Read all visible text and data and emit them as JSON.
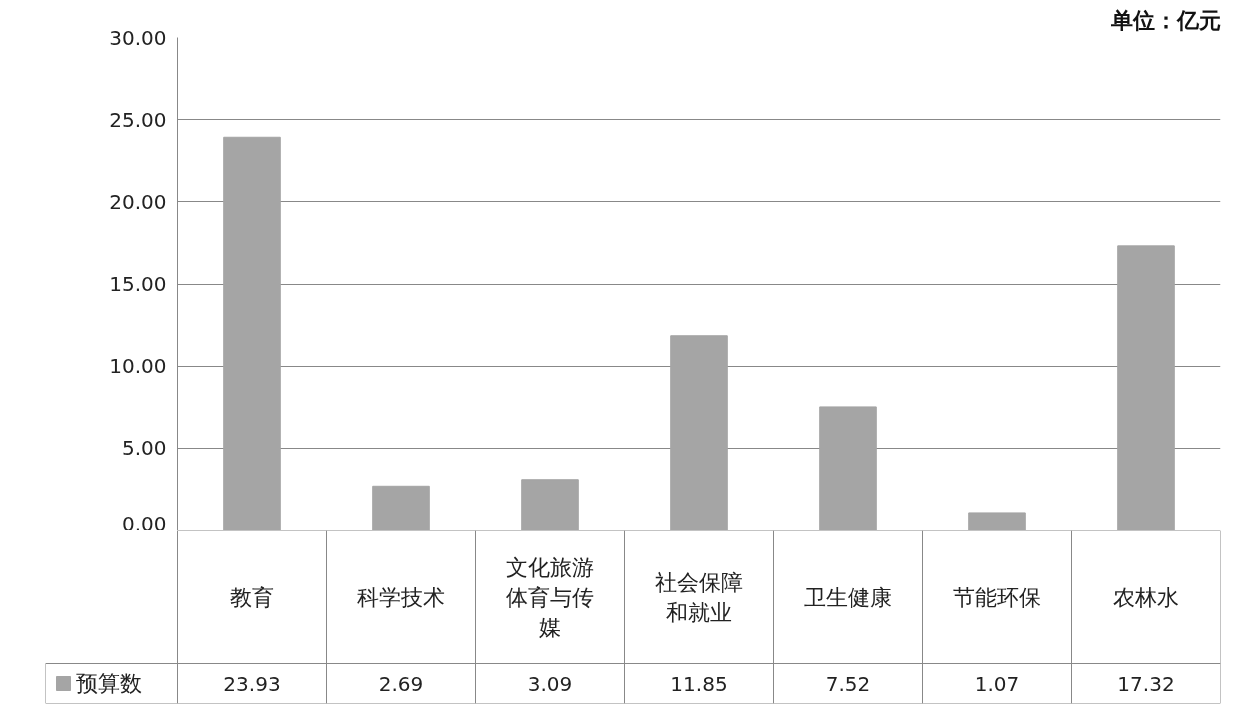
{
  "chart_data": {
    "type": "bar",
    "categories": [
      "教育",
      "科学技术",
      "文化旅游体育与传媒",
      "社会保障和就业",
      "卫生健康",
      "节能环保",
      "农林水"
    ],
    "series": [
      {
        "name": "预算数",
        "color": "#a5a5a5",
        "values": [
          23.93,
          2.69,
          3.09,
          11.85,
          7.52,
          1.07,
          17.32
        ]
      }
    ],
    "ylim": [
      0,
      30
    ],
    "yticks": [
      {
        "value": 0,
        "label": "0.00"
      },
      {
        "value": 5,
        "label": "5.00"
      },
      {
        "value": 10,
        "label": "10.00"
      },
      {
        "value": 15,
        "label": "15.00"
      },
      {
        "value": 20,
        "label": "20.00"
      },
      {
        "value": 25,
        "label": "25.00"
      },
      {
        "value": 30,
        "label": "30.00"
      }
    ],
    "grid": "y",
    "legend": "bottom left",
    "data_labels": true,
    "annotations": [
      "单位：亿元"
    ]
  }
}
